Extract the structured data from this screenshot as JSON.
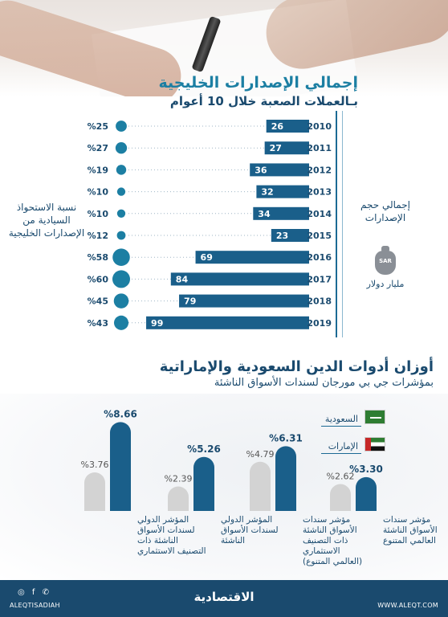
{
  "header": {
    "title": "إجمالي الإصدارات الخليجية",
    "subtitle": "بـالعملات الصعبة خلال 10 أعوام"
  },
  "side_labels": {
    "issuance_total": "إجمالي حجم الإصدارات",
    "currency_icon": "SAR",
    "unit": "مليار دولار",
    "sovereign_share": "نسبة الاستحواذ السيادية من الإصدارات الخليجية"
  },
  "section2": {
    "title": "أوزان أدوات الدين السعودية والإماراتية",
    "subtitle": "بمؤشرات جي بي مورجان لسندات الأسواق الناشئة",
    "legend": [
      {
        "label": "السعودية",
        "flag": "saudi-flag-icon",
        "color": "#1a5f8a"
      },
      {
        "label": "الإمارات",
        "flag": "uae-flag-icon",
        "color": "#d3d3d3"
      }
    ]
  },
  "chart_data": [
    {
      "type": "bar",
      "orientation": "horizontal",
      "title": "إجمالي الإصدارات الخليجية",
      "subtitle": "بـالعملات الصعبة خلال 10 أعوام",
      "categories": [
        "2010",
        "2011",
        "2012",
        "2013",
        "2014",
        "2015",
        "2016",
        "2017",
        "2018",
        "2019"
      ],
      "series": [
        {
          "name": "إجمالي حجم الإصدارات",
          "values": [
            26,
            27,
            36,
            32,
            34,
            23,
            69,
            84,
            79,
            99
          ],
          "color": "#1a5f8a"
        },
        {
          "name": "نسبة الاستحواذ السيادية من الإصدارات الخليجية",
          "values": [
            25,
            27,
            19,
            10,
            10,
            12,
            58,
            60,
            45,
            43
          ],
          "value_labels": [
            "%25",
            "%27",
            "%19",
            "%10",
            "%10",
            "%12",
            "%58",
            "%60",
            "%45",
            "%43"
          ],
          "color": "#1c7fa3"
        }
      ],
      "xlim": [
        0,
        100
      ]
    },
    {
      "type": "bar",
      "orientation": "vertical",
      "title": "أوزان أدوات الدين السعودية والإماراتية",
      "subtitle": "بمؤشرات جي بي مورجان لسندات الأسواق الناشئة",
      "categories": [
        "المؤشر الدولي لسندات الأسواق الناشئة ذات التصنيف الاستثماري",
        "المؤشر الدولي لسندات الأسواق الناشئة",
        "مؤشر سندات الأسواق الناشئة ذات التصنيف الاستثماري (العالمي المتنوع)",
        "مؤشر سندات الأسواق الناشئة العالمي المتنوع"
      ],
      "category_lines": [
        [
          "المؤشر الدولي",
          "لسندات الأسواق",
          "الناشئة ذات",
          "التصنيف الاستثماري"
        ],
        [
          "المؤشر الدولي",
          "لسندات الأسواق",
          "الناشئة"
        ],
        [
          "مؤشر سندات",
          "الأسواق الناشئة",
          "ذات التصنيف",
          "الاستثماري",
          "(العالمي المتنوع)"
        ],
        [
          "مؤشر سندات",
          "الأسواق الناشئة",
          "العالمي المتنوع"
        ]
      ],
      "series": [
        {
          "name": "السعودية",
          "values": [
            8.66,
            5.26,
            6.31,
            3.3
          ],
          "value_labels": [
            "%8.66",
            "%5.26",
            "%6.31",
            "%3.30"
          ],
          "color": "#1a5f8a"
        },
        {
          "name": "الإمارات",
          "values": [
            3.76,
            2.39,
            4.79,
            2.62
          ],
          "value_labels": [
            "%3.76",
            "%2.39",
            "%4.79",
            "%2.62"
          ],
          "color": "#d3d3d3"
        }
      ],
      "ylim": [
        0,
        9
      ]
    }
  ],
  "footer": {
    "brand": "الاقتصادية",
    "left_handle": "ALEQTISADIAH",
    "left_icons": "◎ f ✆",
    "right_url": "WWW.ALEQT.COM"
  }
}
